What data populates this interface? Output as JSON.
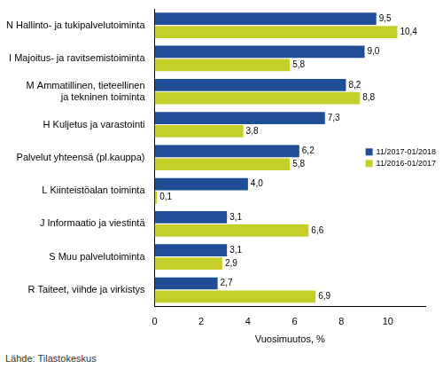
{
  "chart_data": {
    "type": "bar",
    "orientation": "horizontal",
    "categories": [
      "N Hallinto- ja tukipalvelutoiminta",
      "I Majoitus- ja ravitsemistoiminta",
      [
        "M Ammatillinen, tieteellinen",
        "ja tekninen toiminta"
      ],
      "H Kuljetus ja varastointi",
      "Palvelut yhteensä (pl.kauppa)",
      "L Kiinteistöalan toiminta",
      "J Informaatio ja viestintä",
      "S Muu palvelutoiminta",
      "R Taiteet, viihde ja virkistys"
    ],
    "series": [
      {
        "name": "11/2017-01/2018",
        "color": "#1f4e96",
        "values": [
          9.5,
          9.0,
          8.2,
          7.3,
          6.2,
          4.0,
          3.1,
          3.1,
          2.7
        ],
        "value_labels": [
          "9,5",
          "9,0",
          "8,2",
          "7,3",
          "6,2",
          "4,0",
          "3,1",
          "3,1",
          "2,7"
        ]
      },
      {
        "name": "11/2016-01/2017",
        "color": "#c6cf2a",
        "values": [
          10.4,
          5.8,
          8.8,
          3.8,
          5.8,
          0.1,
          6.6,
          2.9,
          6.9
        ],
        "value_labels": [
          "10,4",
          "5,8",
          "8,8",
          "3,8",
          "5,8",
          "0,1",
          "6,6",
          "2,9",
          "6,9"
        ]
      }
    ],
    "xlabel": "Vuosimuutos, %",
    "xlim": [
      0,
      11.6
    ],
    "xticks": [
      0,
      2,
      4,
      6,
      8,
      10
    ],
    "grid": false,
    "legend": "right",
    "data_labels": true,
    "source": "Lähde: Tilastokeskus"
  }
}
